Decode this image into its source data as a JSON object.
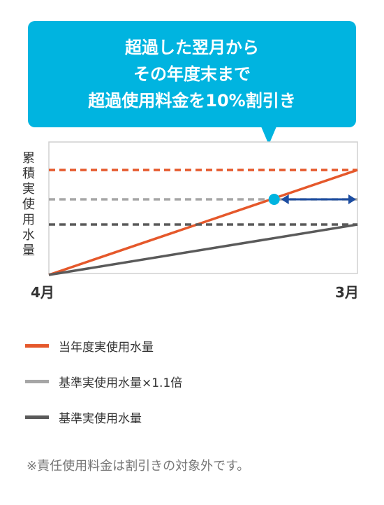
{
  "callout": {
    "lines": [
      "超過した翌月から",
      "その年度末まで",
      "超過使用料金を10%割引き"
    ]
  },
  "chart_data": {
    "type": "line",
    "title": "",
    "ylabel": "累積実使用水量",
    "xlabel": "",
    "x_categories": [
      "4月",
      "3月"
    ],
    "x": [
      0,
      1
    ],
    "ylim": [
      0,
      1
    ],
    "grid": false,
    "series": [
      {
        "name": "当年度実使用水量",
        "style": "solid",
        "color": "#e5582b",
        "points": [
          [
            0,
            0
          ],
          [
            1,
            1
          ]
        ]
      },
      {
        "name": "基準実使用水量×1.1倍",
        "style": "dashed",
        "color": "#a6a6a6",
        "points": [
          [
            0,
            0.72
          ],
          [
            1,
            0.72
          ]
        ]
      },
      {
        "name": "基準実使用水量",
        "style": "dashed",
        "color": "#5a5a5a",
        "points": [
          [
            0,
            0.48
          ],
          [
            1,
            0.48
          ]
        ]
      },
      {
        "name": "基準実使用水量",
        "style": "solid",
        "color": "#5a5a5a",
        "points": [
          [
            0,
            0
          ],
          [
            1,
            0.48
          ]
        ]
      },
      {
        "name": "当年度実使用水量",
        "style": "dashed",
        "color": "#e5582b",
        "points": [
          [
            0,
            1
          ],
          [
            1,
            1
          ]
        ]
      }
    ],
    "crossing_point": {
      "x": 0.73,
      "y": 0.72,
      "color": "#00b4e0"
    },
    "discount_period": {
      "from": 0.73,
      "to": 1,
      "color": "#1c4da1"
    },
    "legend_position": "bottom",
    "legend": [
      {
        "label": "当年度実使用水量",
        "color": "#e5582b"
      },
      {
        "label": "基準実使用水量×1.1倍",
        "color": "#a6a6a6"
      },
      {
        "label": "基準実使用水量",
        "color": "#5a5a5a"
      }
    ]
  },
  "note": "※責任使用料金は割引きの対象外です。"
}
